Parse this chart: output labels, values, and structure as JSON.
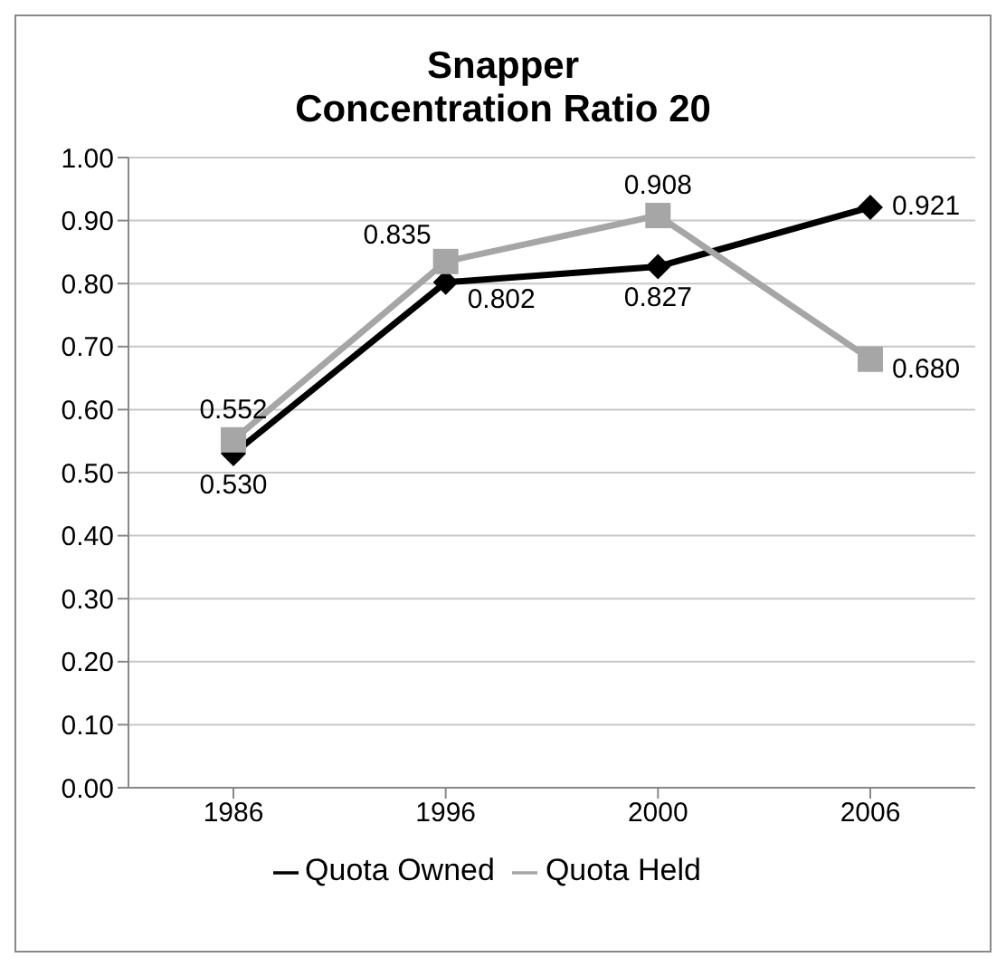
{
  "chart_data": {
    "type": "line",
    "title": "Snapper\nConcentration Ratio 20",
    "categories": [
      "1986",
      "1996",
      "2000",
      "2006"
    ],
    "series": [
      {
        "name": "Quota Owned",
        "color": "#000000",
        "marker": "diamond",
        "values": [
          0.53,
          0.802,
          0.827,
          0.921
        ],
        "value_labels": [
          "0.530",
          "0.802",
          "0.827",
          "0.921"
        ]
      },
      {
        "name": "Quota Held",
        "color": "#a6a6a6",
        "marker": "square",
        "values": [
          0.552,
          0.835,
          0.908,
          0.68
        ],
        "value_labels": [
          "0.552",
          "0.835",
          "0.908",
          "0.680"
        ]
      }
    ],
    "ylim": [
      0,
      1
    ],
    "yticks": [
      {
        "value": 0,
        "label": "0.00"
      },
      {
        "value": 0.1,
        "label": "0.10"
      },
      {
        "value": 0.2,
        "label": "0.20"
      },
      {
        "value": 0.3,
        "label": "0.30"
      },
      {
        "value": 0.4,
        "label": "0.40"
      },
      {
        "value": 0.5,
        "label": "0.50"
      },
      {
        "value": 0.6,
        "label": "0.60"
      },
      {
        "value": 0.7,
        "label": "0.70"
      },
      {
        "value": 0.8,
        "label": "0.80"
      },
      {
        "value": 0.9,
        "label": "0.90"
      },
      {
        "value": 1,
        "label": "1.00"
      }
    ],
    "grid": "y",
    "legend": "bottom",
    "line_style": "solid"
  }
}
